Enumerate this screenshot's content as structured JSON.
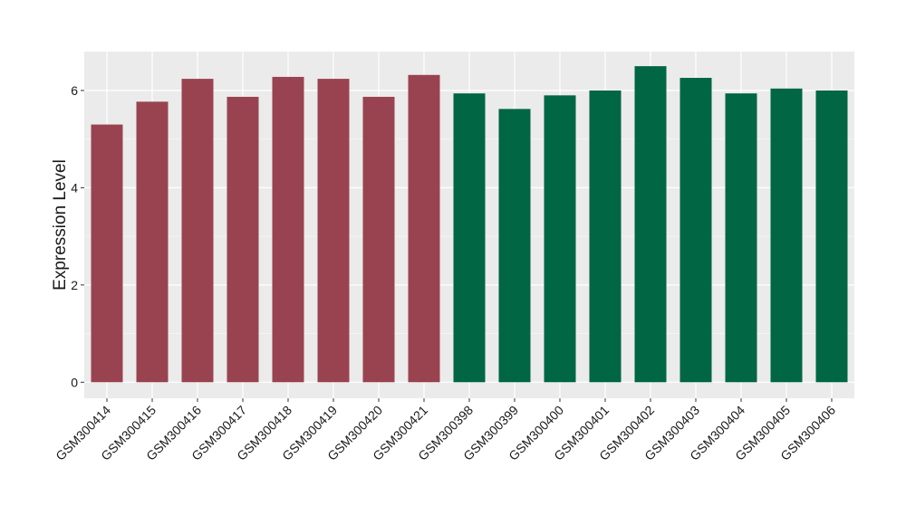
{
  "colors": {
    "panel": "#EBEBEB",
    "grid_major": "#FFFFFF",
    "grid_minor": "#F5F5F5",
    "group_a": "#9A4350",
    "group_b": "#006644",
    "tick": "#333333"
  },
  "chart_data": {
    "type": "bar",
    "title": "",
    "xlabel": "",
    "ylabel": "Expression Level",
    "ylim": [
      -0.33,
      6.8
    ],
    "yticks": [
      0,
      2,
      4,
      6
    ],
    "grid": true,
    "legend": "none",
    "categories": [
      "GSM300414",
      "GSM300415",
      "GSM300416",
      "GSM300417",
      "GSM300418",
      "GSM300419",
      "GSM300420",
      "GSM300421",
      "GSM300398",
      "GSM300399",
      "GSM300400",
      "GSM300401",
      "GSM300402",
      "GSM300403",
      "GSM300404",
      "GSM300405",
      "GSM300406"
    ],
    "values": [
      5.3,
      5.77,
      6.24,
      5.87,
      6.28,
      6.24,
      5.87,
      6.32,
      5.94,
      5.62,
      5.9,
      6.0,
      6.5,
      6.26,
      5.94,
      6.04,
      6.0
    ],
    "bar_groups": [
      "a",
      "a",
      "a",
      "a",
      "a",
      "a",
      "a",
      "a",
      "b",
      "b",
      "b",
      "b",
      "b",
      "b",
      "b",
      "b",
      "b"
    ]
  }
}
